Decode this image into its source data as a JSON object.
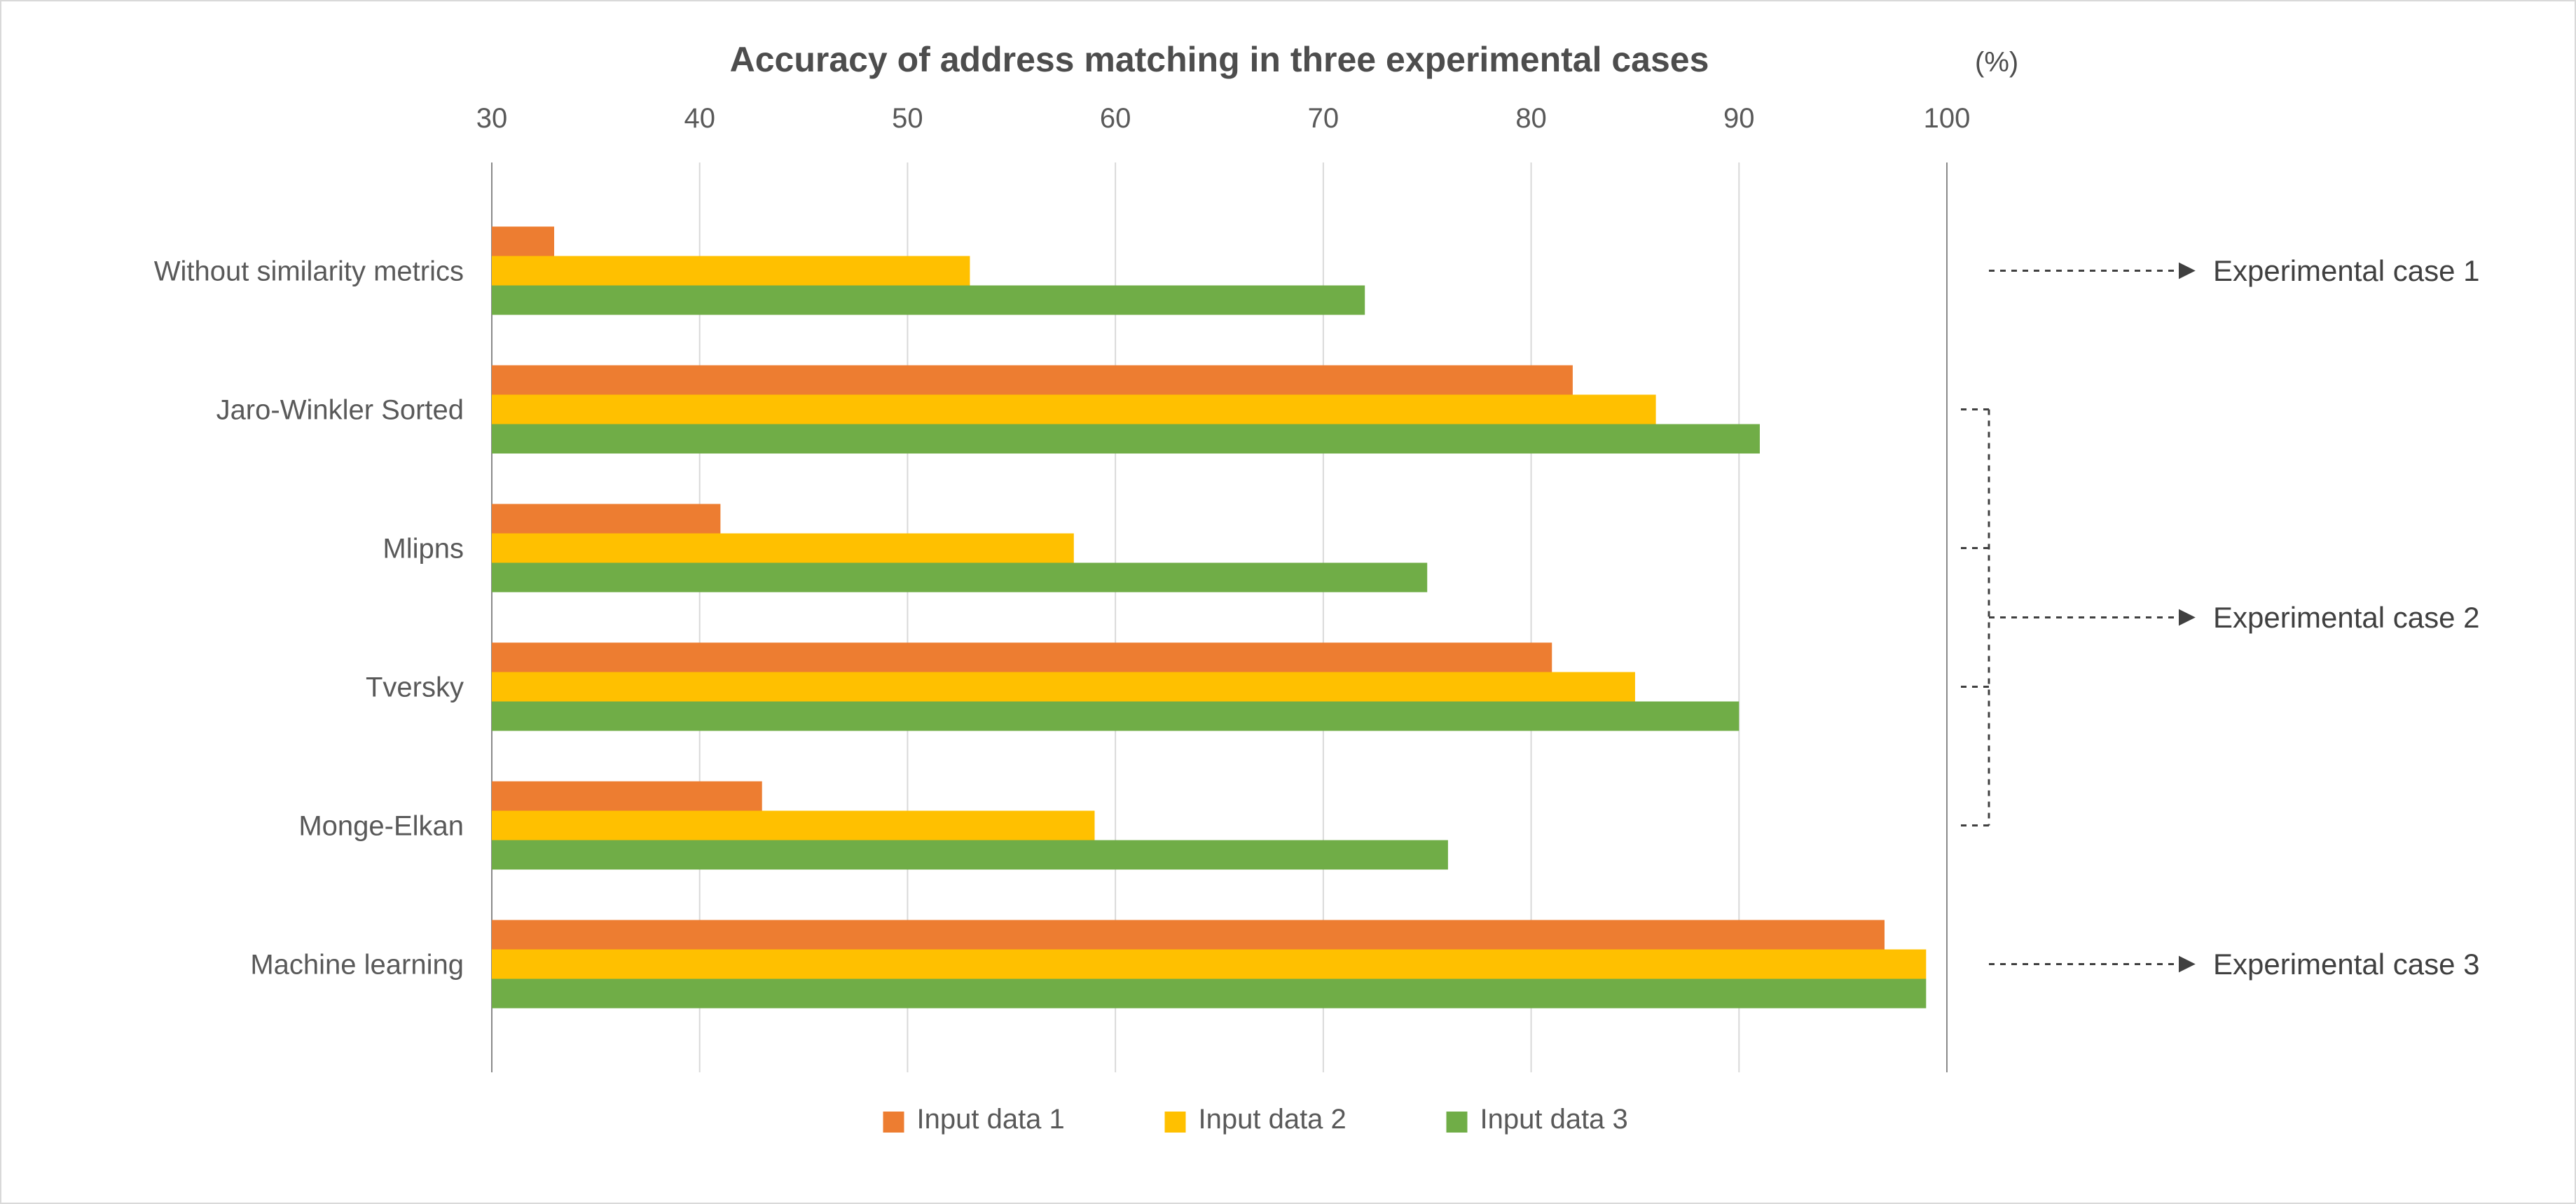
{
  "chart": {
    "type": "horizontal_grouped_bar",
    "title": "Accuracy of address matching in three experimental cases",
    "unit_label": "(%)",
    "title_fontsize": 50,
    "unit_fontsize": 40,
    "axis_fontsize": 40,
    "category_fontsize": 40,
    "legend_fontsize": 40,
    "annotation_fontsize": 42,
    "xlim": [
      30,
      100
    ],
    "xtick_step": 10,
    "background_color": "#ffffff",
    "border_color": "#d9d9d9",
    "grid_color": "#d9d9d9",
    "axis_line_color": "#898989",
    "categories": [
      "Without similarity metrics",
      "Jaro-Winkler Sorted",
      "Mlipns",
      "Tversky",
      "Monge-Elkan",
      "Machine learning"
    ],
    "series": [
      {
        "name": "Input data 1",
        "color": "#ed7d31",
        "values": [
          33,
          82,
          41,
          81,
          43,
          97
        ]
      },
      {
        "name": "Input data 2",
        "color": "#ffc000",
        "values": [
          53,
          86,
          58,
          85,
          59,
          99
        ]
      },
      {
        "name": "Input data 3",
        "color": "#70ad47",
        "values": [
          72,
          91,
          75,
          90,
          76,
          99
        ]
      }
    ],
    "bar_thickness": 42,
    "bar_gap_within_group": 0,
    "group_gap": 72,
    "legend_swatch": 30,
    "annotations": [
      {
        "label": "Experimental case 1",
        "targets": [
          0
        ]
      },
      {
        "label": "Experimental case 2",
        "targets": [
          1,
          2,
          3,
          4
        ]
      },
      {
        "label": "Experimental case 3",
        "targets": [
          5
        ]
      }
    ],
    "annotation_line_color": "#404040",
    "annotation_dash": "8 8"
  }
}
